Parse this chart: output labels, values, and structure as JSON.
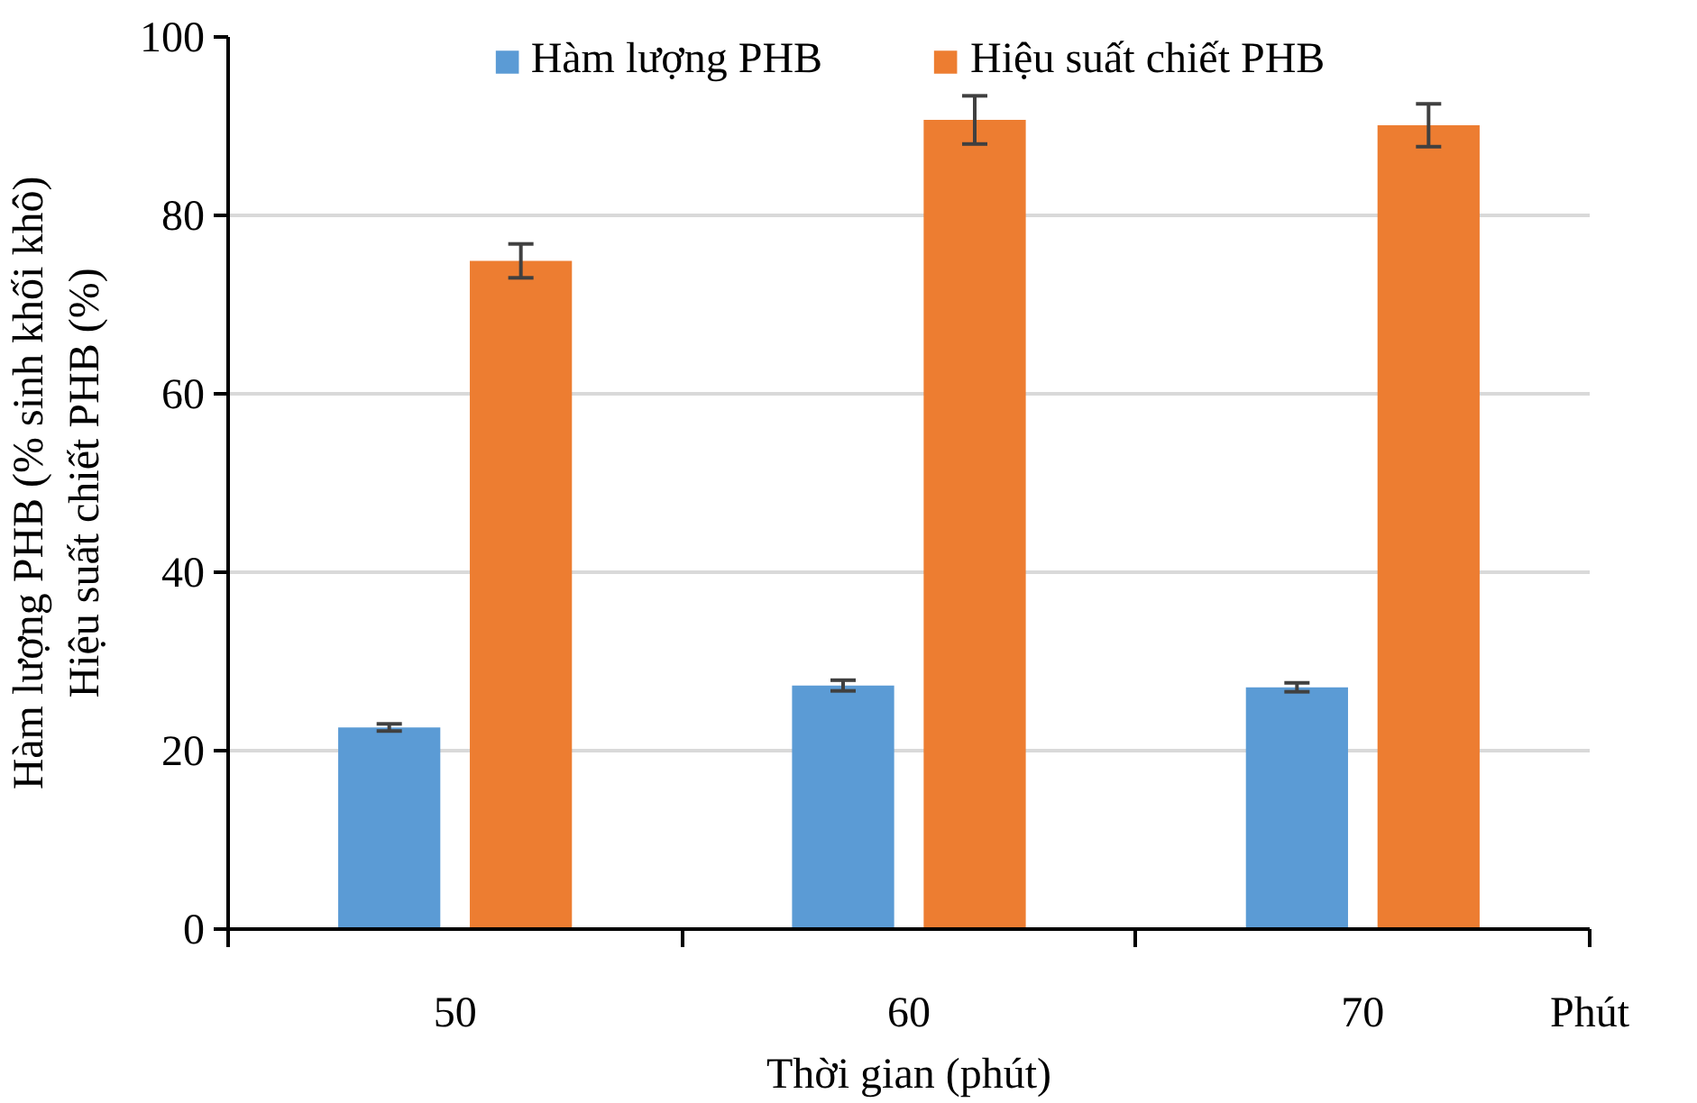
{
  "chart_data": {
    "type": "bar",
    "xlabel": "Thời gian (phút)",
    "ylabel": "Hàm lượng PHB (% sinh khối khô)\nHiệu suất chiết PHB (%)",
    "categories": [
      "50",
      "60",
      "70"
    ],
    "series": [
      {
        "name": "Hàm lượng PHB",
        "color": "#5b9bd5",
        "values": [
          22.6,
          27.3,
          27.1
        ],
        "errors": [
          0.4,
          0.6,
          0.5
        ]
      },
      {
        "name": "Hiệu suất chiết PHB",
        "color": "#ed7d31",
        "values": [
          74.9,
          90.7,
          90.1
        ],
        "errors": [
          1.9,
          2.7,
          2.4
        ]
      }
    ],
    "ylim": [
      0,
      100
    ],
    "yticks": [
      0,
      20,
      40,
      60,
      80,
      100
    ],
    "grid": "y",
    "legend": "top",
    "annotations": [
      "Phút"
    ]
  }
}
